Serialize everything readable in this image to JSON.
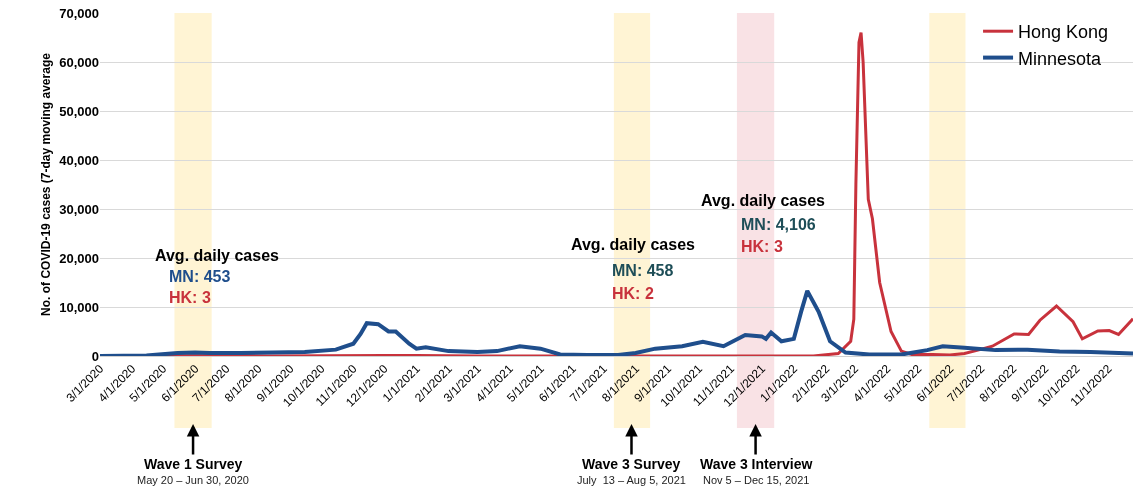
{
  "chart_data": {
    "type": "line",
    "ylabel": "No. of COVID-19 cases (7-day moving average",
    "xlim": [
      "2020-03-01",
      "2022-11-25"
    ],
    "ylim": [
      0,
      70000
    ],
    "yticks": [
      {
        "value": 0,
        "label": "0"
      },
      {
        "value": 10000,
        "label": "10,000"
      },
      {
        "value": 20000,
        "label": "20,000"
      },
      {
        "value": 30000,
        "label": "30,000"
      },
      {
        "value": 40000,
        "label": "40,000"
      },
      {
        "value": 50000,
        "label": "50,000"
      },
      {
        "value": 60000,
        "label": "60,000"
      },
      {
        "value": 70000,
        "label": "70,000"
      }
    ],
    "xticks": [
      {
        "value": "2020-03-01",
        "label": "3/1/2020"
      },
      {
        "value": "2020-04-01",
        "label": "4/1/2020"
      },
      {
        "value": "2020-05-01",
        "label": "5/1/2020"
      },
      {
        "value": "2020-06-01",
        "label": "6/1/2020"
      },
      {
        "value": "2020-07-01",
        "label": "7/1/2020"
      },
      {
        "value": "2020-08-01",
        "label": "8/1/2020"
      },
      {
        "value": "2020-09-01",
        "label": "9/1/2020"
      },
      {
        "value": "2020-10-01",
        "label": "10/1/2020"
      },
      {
        "value": "2020-11-01",
        "label": "11/1/2020"
      },
      {
        "value": "2020-12-01",
        "label": "12/1/2020"
      },
      {
        "value": "2021-01-01",
        "label": "1/1/2021"
      },
      {
        "value": "2021-02-01",
        "label": "2/1/2021"
      },
      {
        "value": "2021-03-01",
        "label": "3/1/2021"
      },
      {
        "value": "2021-04-01",
        "label": "4/1/2021"
      },
      {
        "value": "2021-05-01",
        "label": "5/1/2021"
      },
      {
        "value": "2021-06-01",
        "label": "6/1/2021"
      },
      {
        "value": "2021-07-01",
        "label": "7/1/2021"
      },
      {
        "value": "2021-08-01",
        "label": "8/1/2021"
      },
      {
        "value": "2021-09-01",
        "label": "9/1/2021"
      },
      {
        "value": "2021-10-01",
        "label": "10/1/2021"
      },
      {
        "value": "2021-11-01",
        "label": "11/1/2021"
      },
      {
        "value": "2021-12-01",
        "label": "12/1/2021"
      },
      {
        "value": "2022-01-01",
        "label": "1/1/2022"
      },
      {
        "value": "2022-02-01",
        "label": "2/1/2022"
      },
      {
        "value": "2022-03-01",
        "label": "3/1/2022"
      },
      {
        "value": "2022-04-01",
        "label": "4/1/2022"
      },
      {
        "value": "2022-05-01",
        "label": "5/1/2022"
      },
      {
        "value": "2022-06-01",
        "label": "6/1/2022"
      },
      {
        "value": "2022-07-01",
        "label": "7/1/2022"
      },
      {
        "value": "2022-08-01",
        "label": "8/1/2022"
      },
      {
        "value": "2022-09-01",
        "label": "9/1/2022"
      },
      {
        "value": "2022-10-01",
        "label": "10/1/2022"
      },
      {
        "value": "2022-11-01",
        "label": "11/1/2022"
      }
    ],
    "grid": "y",
    "legend": "top right",
    "marker": "none",
    "line_style": "solid",
    "series": [
      {
        "name": "Hong Kong",
        "color": "#c8323c",
        "x": [
          "2020-03-01",
          "2020-07-20",
          "2020-08-10",
          "2020-12-01",
          "2021-01-01",
          "2021-03-01",
          "2022-01-20",
          "2022-02-13",
          "2022-02-25",
          "2022-02-28",
          "2022-03-02",
          "2022-03-05",
          "2022-03-07",
          "2022-03-09",
          "2022-03-14",
          "2022-03-18",
          "2022-03-25",
          "2022-04-05",
          "2022-04-15",
          "2022-04-25",
          "2022-05-15",
          "2022-06-01",
          "2022-06-15",
          "2022-06-28",
          "2022-07-12",
          "2022-08-02",
          "2022-08-16",
          "2022-08-27",
          "2022-09-12",
          "2022-09-28",
          "2022-10-07",
          "2022-10-22",
          "2022-11-02",
          "2022-11-11",
          "2022-11-25"
        ],
        "values": [
          0,
          100,
          0,
          100,
          100,
          0,
          0,
          500,
          3000,
          7500,
          35000,
          64000,
          66000,
          60000,
          32000,
          28000,
          15000,
          5000,
          1000,
          300,
          300,
          200,
          500,
          1200,
          2000,
          4500,
          4400,
          7300,
          10200,
          7000,
          3500,
          5100,
          5200,
          4400,
          7600
        ]
      },
      {
        "name": "Minnesota",
        "color": "#1f4e8c",
        "x": [
          "2020-03-01",
          "2020-04-15",
          "2020-05-15",
          "2020-06-01",
          "2020-06-15",
          "2020-07-15",
          "2020-08-15",
          "2020-09-15",
          "2020-10-15",
          "2020-11-01",
          "2020-11-08",
          "2020-11-14",
          "2020-11-25",
          "2020-12-05",
          "2020-12-12",
          "2020-12-25",
          "2021-01-01",
          "2021-01-10",
          "2021-02-01",
          "2021-03-01",
          "2021-03-20",
          "2021-04-11",
          "2021-05-01",
          "2021-05-20",
          "2021-06-15",
          "2021-07-15",
          "2021-08-01",
          "2021-08-20",
          "2021-09-15",
          "2021-10-05",
          "2021-10-25",
          "2021-11-15",
          "2021-12-01",
          "2021-12-05",
          "2021-12-10",
          "2021-12-20",
          "2022-01-01",
          "2022-01-08",
          "2022-01-14",
          "2022-01-25",
          "2022-02-05",
          "2022-02-20",
          "2022-03-15",
          "2022-04-15",
          "2022-05-10",
          "2022-05-25",
          "2022-06-15",
          "2022-07-15",
          "2022-08-15",
          "2022-09-15",
          "2022-10-15",
          "2022-11-25"
        ],
        "values": [
          0,
          100,
          600,
          700,
          600,
          600,
          700,
          800,
          1300,
          2500,
          4500,
          6700,
          6500,
          5000,
          5000,
          2500,
          1500,
          1800,
          1000,
          800,
          1000,
          2000,
          1500,
          300,
          200,
          200,
          600,
          1500,
          2000,
          2900,
          2000,
          4300,
          4000,
          3500,
          4800,
          3000,
          3500,
          9000,
          13300,
          9000,
          3000,
          700,
          300,
          300,
          1200,
          2000,
          1700,
          1200,
          1300,
          900,
          800,
          500
        ]
      }
    ],
    "bands": [
      {
        "axis": "x",
        "from": "2020-05-12",
        "to": "2020-06-17",
        "color": "#fff2cc"
      },
      {
        "axis": "x",
        "from": "2021-07-11",
        "to": "2021-08-15",
        "color": "#fff2cc"
      },
      {
        "axis": "x",
        "from": "2021-11-07",
        "to": "2021-12-13",
        "color": "#f8dde0"
      },
      {
        "axis": "x",
        "from": "2022-05-12",
        "to": "2022-06-16",
        "color": "#fff2cc"
      }
    ],
    "annotations": [
      "Avg. daily cases",
      "MN: 453",
      "HK: 3",
      "Avg. daily cases",
      "MN: 458",
      "HK: 2",
      "Avg. daily cases",
      "MN: 4,106",
      "HK: 3",
      "Wave 1 Survey",
      "May 20 – Jun 30, 2020",
      "Wave 3 Survey",
      "July  13 – Aug 5, 2021",
      "Wave 3 Interview",
      "Nov 5 – Dec 15, 2021"
    ]
  }
}
